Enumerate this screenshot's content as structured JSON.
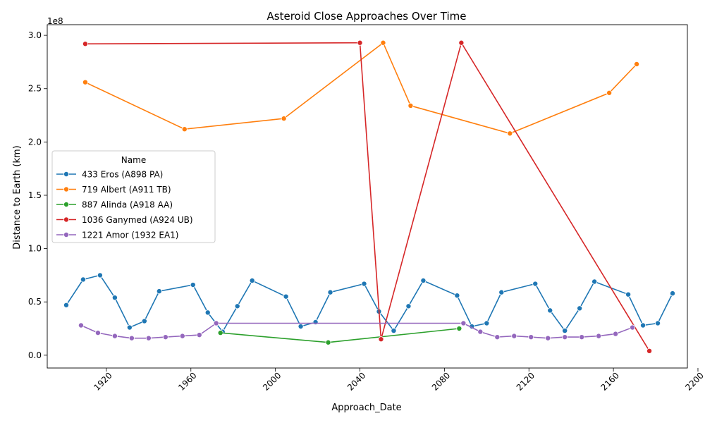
{
  "chart_data": {
    "type": "line",
    "title": "Asteroid Close Approaches Over Time",
    "xlabel": "Approach_Date",
    "ylabel": "Distance to Earth (km)",
    "y_offset_text": "1e8",
    "y_scale": 100000000,
    "xlim": [
      1892,
      2195
    ],
    "ylim": [
      -0.12,
      3.1
    ],
    "xticks": [
      1920,
      1960,
      2000,
      2040,
      2080,
      2120,
      2160,
      2200
    ],
    "xtick_labels": [
      "1920",
      "1960",
      "2000",
      "2040",
      "2080",
      "2120",
      "2160",
      "2200"
    ],
    "yticks": [
      0.0,
      0.5,
      1.0,
      1.5,
      2.0,
      2.5,
      3.0
    ],
    "ytick_labels": [
      "0.0",
      "0.5",
      "1.0",
      "1.5",
      "2.0",
      "2.5",
      "3.0"
    ],
    "grid": false,
    "legend": {
      "title": "Name",
      "placement": "center-left"
    },
    "series": [
      {
        "name": "433 Eros (A898 PA)",
        "color": "#1f77b4",
        "x": [
          1901,
          1909,
          1917,
          1924,
          1931,
          1938,
          1945,
          1961,
          1968,
          1975,
          1982,
          1989,
          2005,
          2012,
          2019,
          2026,
          2042,
          2049,
          2056,
          2063,
          2070,
          2086,
          2093,
          2100,
          2107,
          2123,
          2130,
          2137,
          2144,
          2151,
          2167,
          2174,
          2181,
          2188
        ],
        "values": [
          0.47,
          0.71,
          0.75,
          0.54,
          0.26,
          0.32,
          0.6,
          0.66,
          0.4,
          0.22,
          0.46,
          0.7,
          0.55,
          0.27,
          0.31,
          0.59,
          0.67,
          0.41,
          0.23,
          0.46,
          0.7,
          0.56,
          0.27,
          0.3,
          0.59,
          0.67,
          0.42,
          0.23,
          0.44,
          0.69,
          0.57,
          0.28,
          0.3,
          0.58
        ]
      },
      {
        "name": "719 Albert (A911 TB)",
        "color": "#ff7f0e",
        "x": [
          1910,
          1957,
          2004,
          2051,
          2064,
          2111,
          2158,
          2171
        ],
        "values": [
          2.56,
          2.12,
          2.22,
          2.93,
          2.34,
          2.08,
          2.46,
          2.73
        ]
      },
      {
        "name": "887 Alinda (A918 AA)",
        "color": "#2ca02c",
        "x": [
          1974,
          2025,
          2087
        ],
        "values": [
          0.21,
          0.12,
          0.25
        ]
      },
      {
        "name": "1036 Ganymed (A924 UB)",
        "color": "#d62728",
        "x": [
          1910,
          2040,
          2050,
          2088,
          2177
        ],
        "values": [
          2.92,
          2.93,
          0.15,
          2.93,
          0.04
        ]
      },
      {
        "name": "1221 Amor (1932 EA1)",
        "color": "#9467bd",
        "x": [
          1908,
          1916,
          1924,
          1932,
          1940,
          1948,
          1956,
          1964,
          1972,
          2089,
          2097,
          2105,
          2113,
          2121,
          2129,
          2137,
          2145,
          2153,
          2161,
          2169
        ],
        "values": [
          0.28,
          0.21,
          0.18,
          0.16,
          0.16,
          0.17,
          0.18,
          0.19,
          0.3,
          0.3,
          0.22,
          0.17,
          0.18,
          0.17,
          0.16,
          0.17,
          0.17,
          0.18,
          0.2,
          0.26
        ]
      }
    ]
  }
}
